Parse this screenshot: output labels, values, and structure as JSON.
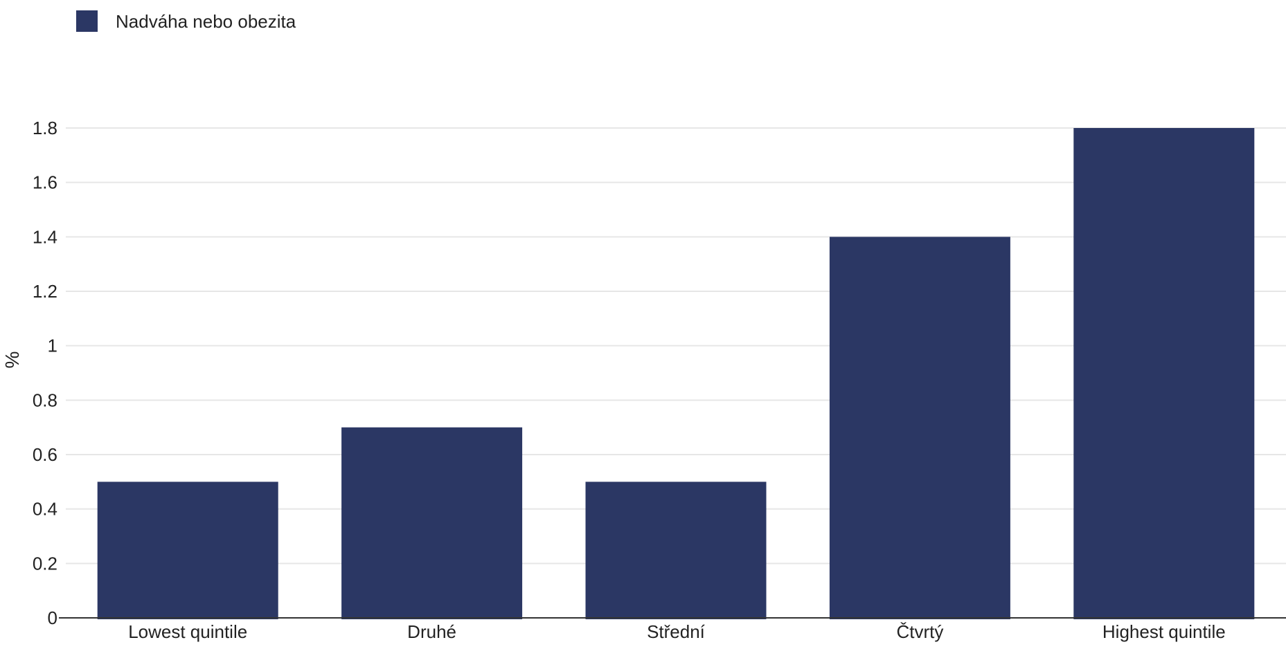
{
  "chart_data": {
    "type": "bar",
    "title": "",
    "xlabel": "",
    "ylabel": "%",
    "categories": [
      "Lowest quintile",
      "Druhé",
      "Střední",
      "Čtvrtý",
      "Highest quintile"
    ],
    "series": [
      {
        "name": "Nadváha nebo obezita",
        "values": [
          0.5,
          0.7,
          0.5,
          1.4,
          1.8
        ],
        "color": "#2b3764"
      }
    ],
    "ylim": [
      0,
      1.8
    ],
    "yticks": [
      "0",
      "0.2",
      "0.4",
      "0.6",
      "0.8",
      "1",
      "1.2",
      "1.4",
      "1.6",
      "1.8"
    ],
    "grid": true,
    "legend_position": "top-left",
    "colors": {
      "bar": "#2b3764",
      "grid": "#e6e6e6",
      "axis": "#333333",
      "text": "#222222"
    }
  }
}
